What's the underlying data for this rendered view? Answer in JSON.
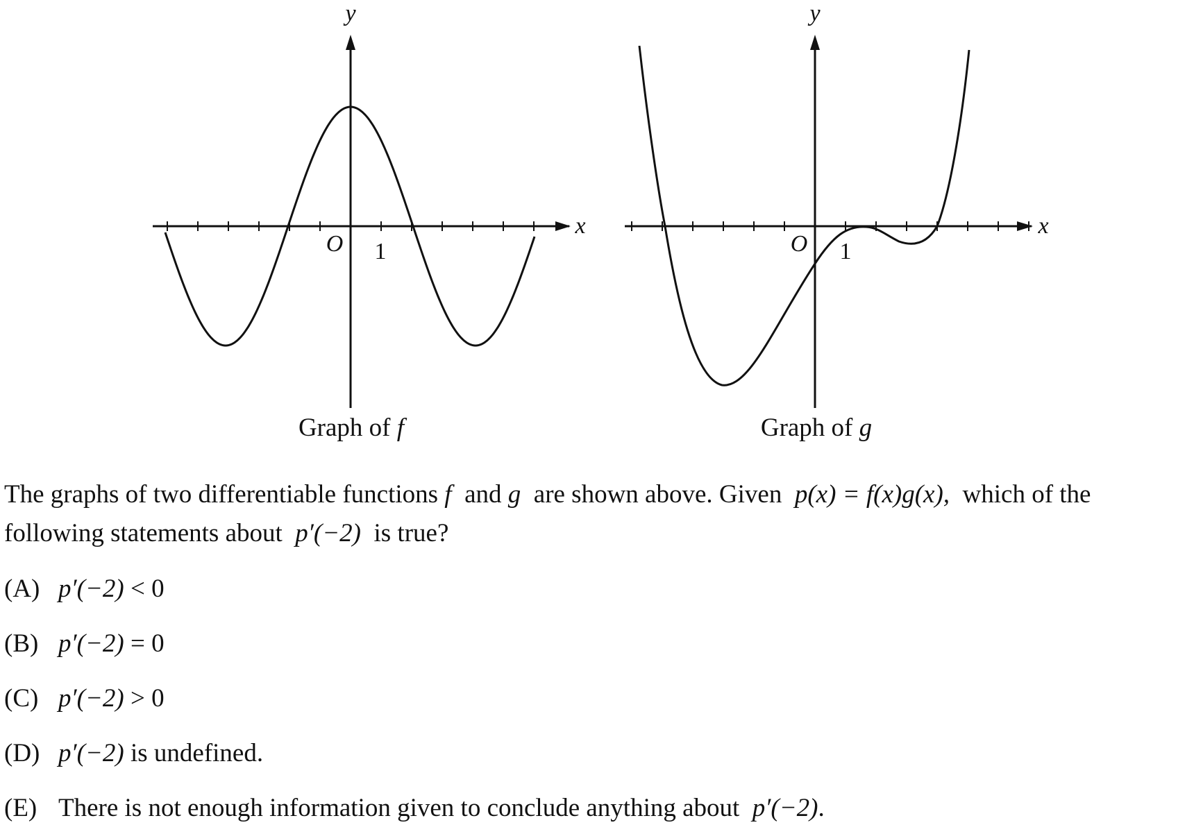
{
  "figures": [
    {
      "caption_text": "Graph of",
      "caption_fn": "f",
      "x_axis_label": "x",
      "y_axis_label": "y",
      "origin_label": "O",
      "tick_label": "1"
    },
    {
      "caption_text": "Graph of",
      "caption_fn": "g",
      "x_axis_label": "x",
      "y_axis_label": "y",
      "origin_label": "O",
      "tick_label": "1"
    }
  ],
  "question": {
    "line1_a": "The graphs of two differentiable functions",
    "f": "f",
    "and": "and",
    "g": "g",
    "line1_b": "are shown above. Given",
    "formula": "p(x) = f(x)g(x),",
    "line1_c": "which of the",
    "line2_a": "following statements about",
    "pprime": "p′(−2)",
    "line2_b": "is true?"
  },
  "choices": [
    {
      "letter": "(A)",
      "expr": "p′(−2)",
      "rest": " < 0"
    },
    {
      "letter": "(B)",
      "expr": "p′(−2)",
      "rest": " = 0"
    },
    {
      "letter": "(C)",
      "expr": "p′(−2)",
      "rest": " > 0"
    },
    {
      "letter": "(D)",
      "expr": "p′(−2)",
      "rest": " is undefined."
    },
    {
      "letter": "(E)",
      "pre": "There is not enough information given to conclude anything about",
      "expr": "p′(−2)",
      "rest": "."
    }
  ]
}
